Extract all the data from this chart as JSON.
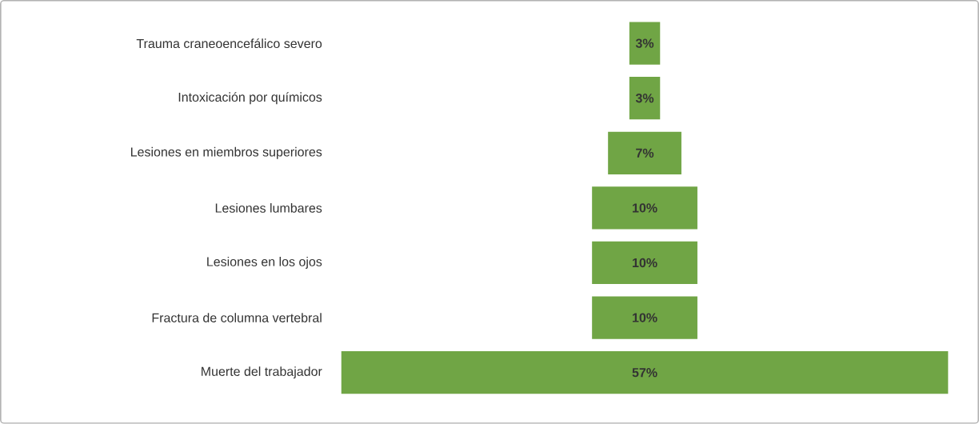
{
  "chart_data": {
    "type": "other",
    "categories": [
      "Trauma craneoencefálico severo",
      "Intoxicación por químicos",
      "Lesiones en miembros superiores",
      "Lesiones lumbares",
      "Lesiones en los ojos",
      "Fractura de columna vertebral",
      "Muerte del trabajador"
    ],
    "values": [
      3,
      3,
      7,
      10,
      10,
      10,
      57
    ],
    "value_labels": [
      "3%",
      "3%",
      "7%",
      "10%",
      "10%",
      "10%",
      "57%"
    ],
    "color": "#70a545"
  }
}
